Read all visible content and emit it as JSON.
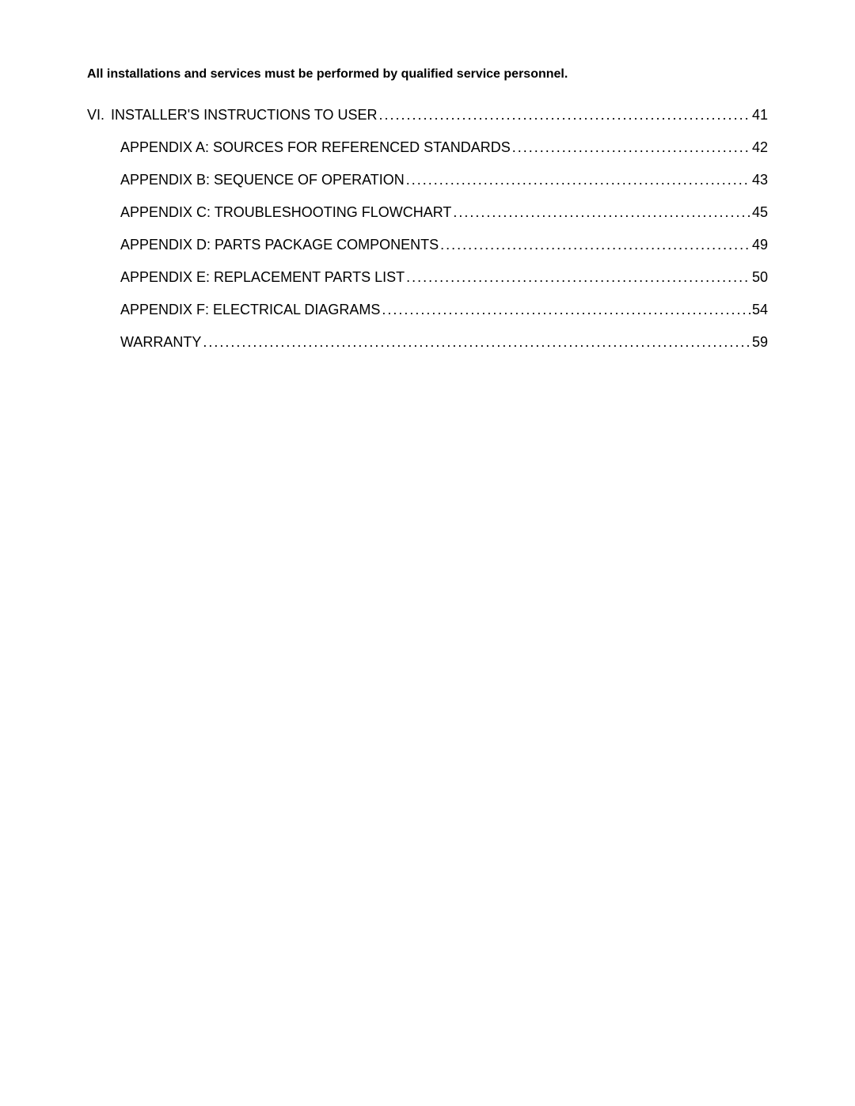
{
  "header": {
    "notice": "All installations and services must be performed by qualified service personnel."
  },
  "toc": {
    "main_item": {
      "roman": "VI.",
      "title": "INSTALLER'S INSTRUCTIONS TO USER",
      "page": "41"
    },
    "sub_items": [
      {
        "title": "APPENDIX A:  SOURCES FOR REFERENCED STANDARDS",
        "page": "42"
      },
      {
        "title": "APPENDIX B:  SEQUENCE OF OPERATION",
        "page": "43"
      },
      {
        "title": "APPENDIX C:  TROUBLESHOOTING FLOWCHART",
        "page": "45"
      },
      {
        "title": "APPENDIX D:  PARTS PACKAGE COMPONENTS",
        "page": "49"
      },
      {
        "title": "APPENDIX E:  REPLACEMENT PARTS LIST",
        "page": "50"
      },
      {
        "title": "APPENDIX F:  ELECTRICAL DIAGRAMS",
        "page": "54"
      },
      {
        "title": "WARRANTY",
        "page": "59"
      }
    ]
  },
  "dots_fill": "......................................................................................................................................."
}
